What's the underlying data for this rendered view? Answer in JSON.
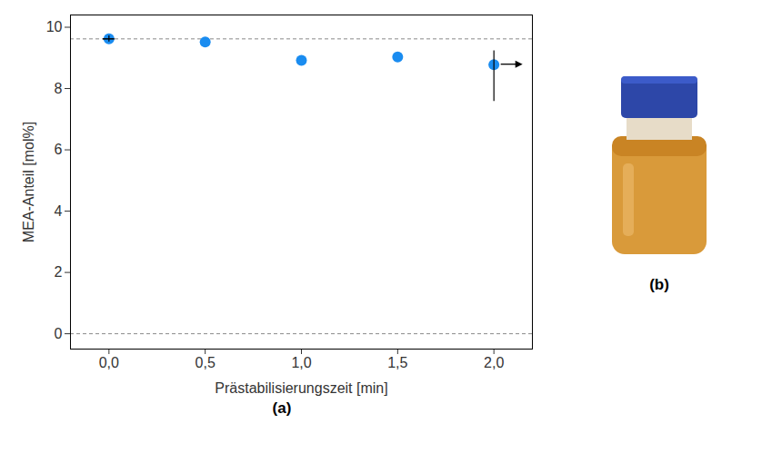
{
  "chart_data": {
    "type": "scatter",
    "panel_label": "(a)",
    "x_label": "Prästabilisierungszeit [min]",
    "y_label": "MEA-Anteil [mol%]",
    "x": [
      0,
      0.5,
      1.0,
      1.5,
      2.0
    ],
    "values": [
      9.62,
      9.52,
      8.92,
      9.03,
      8.78
    ],
    "y_error_minus": [
      0.1,
      0,
      0,
      0,
      1.2
    ],
    "y_error_plus": [
      0.1,
      0,
      0,
      0,
      0.45
    ],
    "x_error": [
      0.03,
      0,
      0,
      0,
      0
    ],
    "color": "#1a8cf0",
    "marker": "circle",
    "reference_lines": [
      9.62,
      0
    ],
    "xlim": [
      -0.2,
      2.2
    ],
    "ylim": [
      -0.5,
      10.4
    ],
    "xticks": [
      {
        "value": 0,
        "label": "0,0"
      },
      {
        "value": 0.5,
        "label": "0,5"
      },
      {
        "value": 1.0,
        "label": "1,0"
      },
      {
        "value": 1.5,
        "label": "1,5"
      },
      {
        "value": 2.0,
        "label": "2,0"
      }
    ],
    "yticks": [
      0,
      2,
      4,
      6,
      8,
      10
    ],
    "grid": false
  },
  "image_panel": {
    "label": "(b)"
  }
}
